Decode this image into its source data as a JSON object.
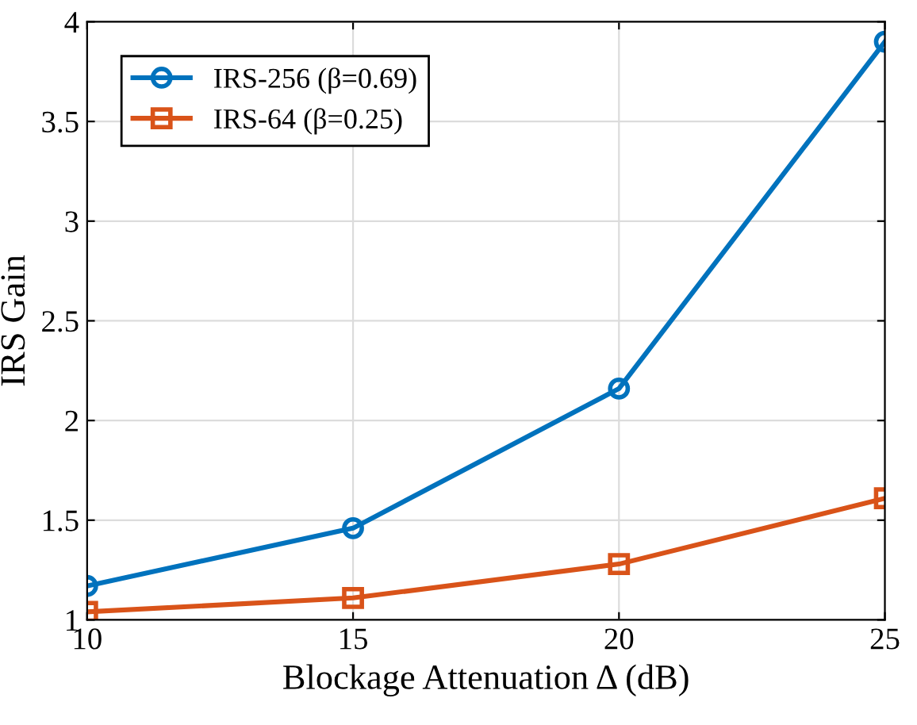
{
  "chart_data": {
    "type": "line",
    "xlabel": "Blockage Attenuation Δ (dB)",
    "ylabel": "IRS Gain",
    "x": [
      10,
      15,
      20,
      25
    ],
    "series": [
      {
        "name": "IRS-256 (β=0.69)",
        "color": "#0072bd",
        "marker": "circle",
        "values": [
          1.17,
          1.46,
          2.16,
          3.9
        ]
      },
      {
        "name": "IRS-64 (β=0.25)",
        "color": "#d95319",
        "marker": "square",
        "values": [
          1.04,
          1.11,
          1.28,
          1.61
        ]
      }
    ],
    "xlim": [
      10,
      25
    ],
    "xticks": [
      10,
      15,
      20,
      25
    ],
    "ylim": [
      1,
      4
    ],
    "yticks": [
      1,
      1.5,
      2,
      2.5,
      3,
      3.5,
      4
    ],
    "grid": true,
    "legend": "top left",
    "line_style": "solid"
  }
}
